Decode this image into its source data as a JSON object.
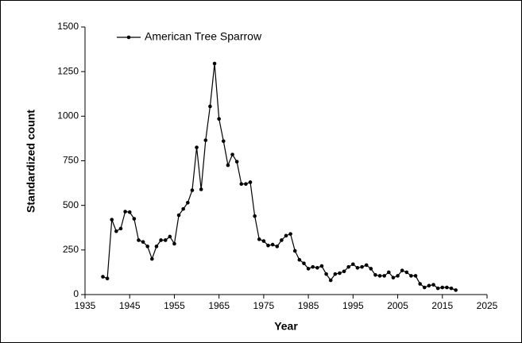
{
  "chart_data": {
    "type": "line",
    "xlabel": "Year",
    "ylabel": "Standardized count",
    "x": [
      1939,
      1940,
      1941,
      1942,
      1943,
      1944,
      1945,
      1946,
      1947,
      1948,
      1949,
      1950,
      1951,
      1952,
      1953,
      1954,
      1955,
      1956,
      1957,
      1958,
      1959,
      1960,
      1961,
      1962,
      1963,
      1964,
      1965,
      1966,
      1967,
      1968,
      1969,
      1970,
      1971,
      1972,
      1973,
      1974,
      1975,
      1976,
      1977,
      1978,
      1979,
      1980,
      1981,
      1982,
      1983,
      1984,
      1985,
      1986,
      1987,
      1988,
      1989,
      1990,
      1991,
      1992,
      1993,
      1994,
      1995,
      1996,
      1997,
      1998,
      1999,
      2000,
      2001,
      2002,
      2003,
      2004,
      2005,
      2006,
      2007,
      2008,
      2009,
      2010,
      2011,
      2012,
      2013,
      2014,
      2015,
      2016,
      2017,
      2018
    ],
    "series": [
      {
        "name": "American Tree Sparrow",
        "color": "#000000",
        "values": [
          100,
          90,
          420,
          355,
          370,
          465,
          462,
          425,
          305,
          295,
          270,
          200,
          270,
          305,
          305,
          325,
          285,
          445,
          480,
          515,
          585,
          825,
          590,
          865,
          1055,
          1295,
          985,
          860,
          725,
          785,
          745,
          620,
          620,
          630,
          440,
          310,
          300,
          275,
          280,
          270,
          305,
          330,
          340,
          245,
          195,
          175,
          145,
          155,
          150,
          160,
          115,
          80,
          115,
          120,
          130,
          155,
          170,
          150,
          155,
          165,
          145,
          110,
          105,
          105,
          125,
          95,
          105,
          135,
          125,
          105,
          105,
          60,
          40,
          50,
          55,
          35,
          40,
          40,
          35,
          25
        ]
      }
    ],
    "xlim": [
      1935,
      2025
    ],
    "xticks": [
      1935,
      1945,
      1955,
      1965,
      1975,
      1985,
      1995,
      2005,
      2015,
      2025
    ],
    "ylim": [
      0,
      1500
    ],
    "yticks": [
      0,
      250,
      500,
      750,
      1000,
      1250,
      1500
    ],
    "legend": "upper left"
  }
}
